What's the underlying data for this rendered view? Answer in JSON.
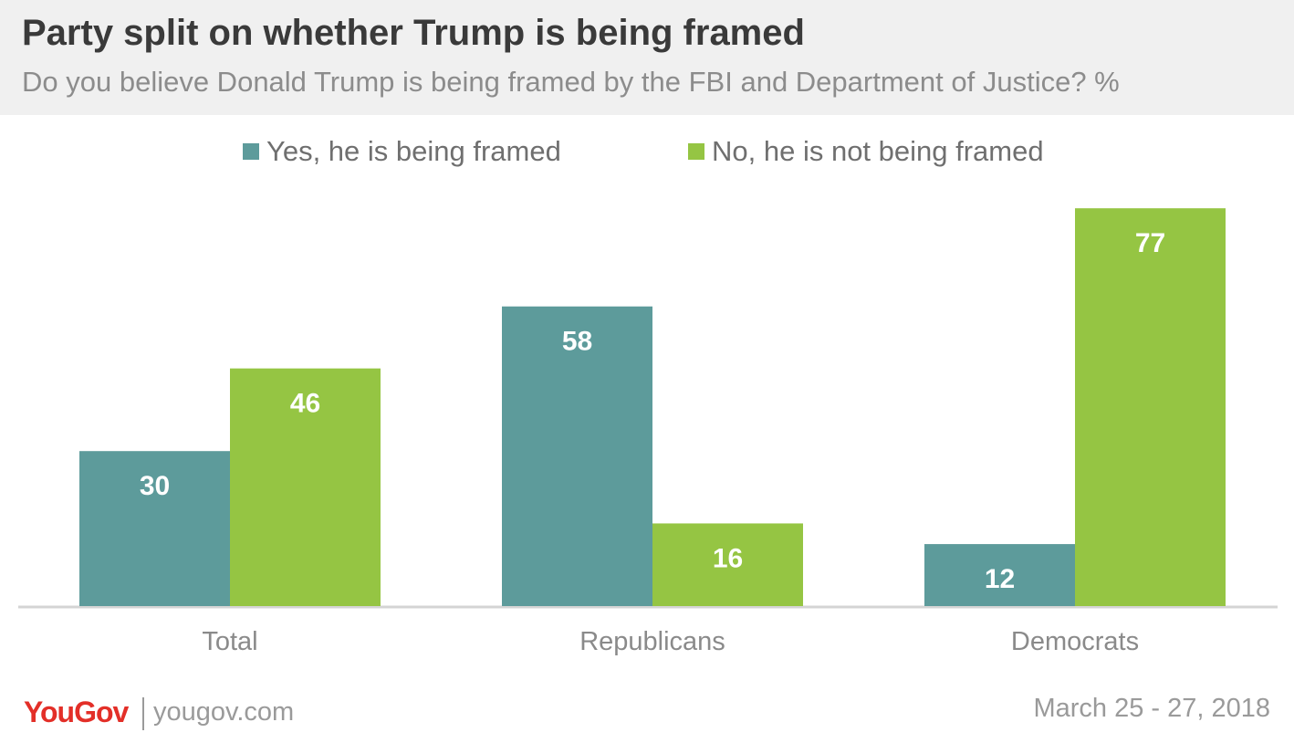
{
  "chart_data": {
    "type": "bar",
    "title": "Party split on whether Trump is being framed",
    "subtitle": "Do you believe Donald Trump is being framed by the FBI and Department of Justice? %",
    "categories": [
      "Total",
      "Republicans",
      "Democrats"
    ],
    "series": [
      {
        "name": "Yes, he is being framed",
        "values": [
          30,
          58,
          12
        ],
        "color": "#5d9b9b"
      },
      {
        "name": "No, he is not being framed",
        "values": [
          46,
          16,
          77
        ],
        "color": "#95c543"
      }
    ],
    "ylim": [
      0,
      80
    ],
    "grid": false,
    "legend": "top-center"
  },
  "footer": {
    "brand": "YouGov",
    "url": "yougov.com",
    "date": "March 25 - 27, 2018"
  }
}
